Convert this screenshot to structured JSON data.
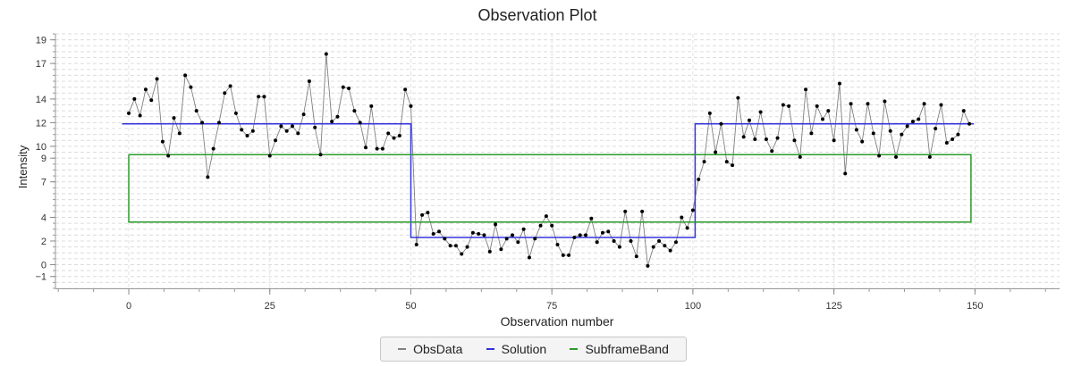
{
  "chart_data": {
    "type": "line",
    "title": "Observation Plot",
    "xlabel": "Observation number",
    "ylabel": "Intensity",
    "xlim": [
      -13,
      165
    ],
    "ylim": [
      -2,
      19.5
    ],
    "xticks": [
      0,
      25,
      50,
      75,
      100,
      125,
      150
    ],
    "yticks": [
      -1,
      0,
      2,
      4,
      7,
      9,
      10,
      12,
      14,
      17,
      19
    ],
    "grid": true,
    "legend": "bottom-center",
    "colors": {
      "ObsData": "#808080",
      "Solution": "#3333e0",
      "SubframeBand": "#2a9a2a",
      "points": "#000000"
    },
    "series": [
      {
        "name": "ObsData",
        "x": [
          0,
          1,
          2,
          3,
          4,
          5,
          6,
          7,
          8,
          9,
          10,
          11,
          12,
          13,
          14,
          15,
          16,
          17,
          18,
          19,
          20,
          21,
          22,
          23,
          24,
          25,
          26,
          27,
          28,
          29,
          30,
          31,
          32,
          33,
          34,
          35,
          36,
          37,
          38,
          39,
          40,
          41,
          42,
          43,
          44,
          45,
          46,
          47,
          48,
          49,
          50,
          51,
          52,
          53,
          54,
          55,
          56,
          57,
          58,
          59,
          60,
          61,
          62,
          63,
          64,
          65,
          66,
          67,
          68,
          69,
          70,
          71,
          72,
          73,
          74,
          75,
          76,
          77,
          78,
          79,
          80,
          81,
          82,
          83,
          84,
          85,
          86,
          87,
          88,
          89,
          90,
          91,
          92,
          93,
          94,
          95,
          96,
          97,
          98,
          99,
          100,
          101,
          102,
          103,
          104,
          105,
          106,
          107,
          108,
          109,
          110,
          111,
          112,
          113,
          114,
          115,
          116,
          117,
          118,
          119,
          120,
          121,
          122,
          123,
          124,
          125,
          126,
          127,
          128,
          129,
          130,
          131,
          132,
          133,
          134,
          135,
          136,
          137,
          138,
          139,
          140,
          141,
          142,
          143,
          144,
          145,
          146,
          147,
          148,
          149
        ],
        "values": [
          12.8,
          14,
          12.6,
          14.8,
          13.9,
          15.7,
          10.4,
          9.2,
          12.4,
          11.1,
          16,
          15,
          13,
          12,
          7.4,
          9.8,
          12,
          14.5,
          15.1,
          12.8,
          11.4,
          10.9,
          11.3,
          14.2,
          14.2,
          9.2,
          10.5,
          11.7,
          11.3,
          11.7,
          11.1,
          12.7,
          15.5,
          11.6,
          9.3,
          17.8,
          12.1,
          12.5,
          15,
          14.9,
          13,
          12,
          9.9,
          13.4,
          9.8,
          9.8,
          11.1,
          10.7,
          10.9,
          14.8,
          13.4,
          1.7,
          4.2,
          4.4,
          2.6,
          2.8,
          2.2,
          1.6,
          1.6,
          0.9,
          1.5,
          2.7,
          2.6,
          2.5,
          1.1,
          3.4,
          1.3,
          2.2,
          2.5,
          1.9,
          3,
          0.6,
          2.2,
          3.3,
          4.1,
          3.3,
          1.7,
          0.8,
          0.8,
          2.3,
          2.5,
          2.5,
          3.9,
          1.9,
          2.7,
          2.8,
          2,
          1.5,
          4.5,
          2,
          0.7,
          4.5,
          -0.1,
          1.5,
          2,
          1.6,
          1.2,
          1.9,
          4,
          3.1,
          4.6,
          7.2,
          8.7,
          12.8,
          9.5,
          11.9,
          8.7,
          8.4,
          14.1,
          10.8,
          12.2,
          10.6,
          12.9,
          10.6,
          9.6,
          10.7,
          13.5,
          13.4,
          10.5,
          9.1,
          14.8,
          11.1,
          13.4,
          12.3,
          13,
          10.5,
          15.3,
          7.7,
          13.6,
          11.4,
          10.4,
          13.6,
          11.1,
          9.2,
          13.8,
          11.3,
          9.1,
          11,
          11.7,
          12.1,
          12.3,
          13.6,
          9.1,
          11.5,
          13.5,
          10.3,
          10.6,
          11,
          13,
          11.9
        ]
      },
      {
        "name": "Solution",
        "x": [
          -1.2,
          50,
          50,
          100.4,
          100.4,
          149.8
        ],
        "values": [
          11.9,
          11.9,
          2.3,
          2.3,
          11.9,
          11.9
        ]
      },
      {
        "name": "SubframeBand",
        "x": [
          0,
          149.3,
          149.3,
          0,
          0
        ],
        "values": [
          9.3,
          9.3,
          3.6,
          3.6,
          9.3
        ]
      }
    ]
  }
}
